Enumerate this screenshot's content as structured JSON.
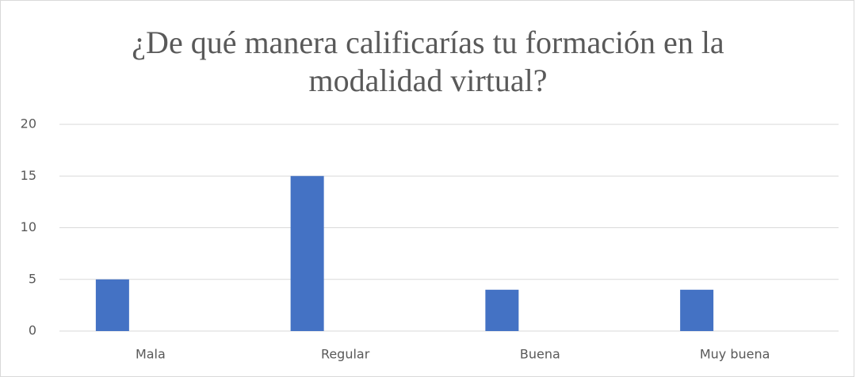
{
  "chart_data": {
    "type": "bar",
    "title": "¿De qué manera calificarías tu formación en la modalidad virtual?",
    "categories": [
      "Mala",
      "Regular",
      "Buena",
      "Muy buena"
    ],
    "values": [
      5,
      15,
      4,
      4
    ],
    "color": "#4472c4",
    "ylim": [
      0,
      20
    ],
    "yticks": [
      0,
      5,
      10,
      15,
      20
    ],
    "grid": true
  }
}
